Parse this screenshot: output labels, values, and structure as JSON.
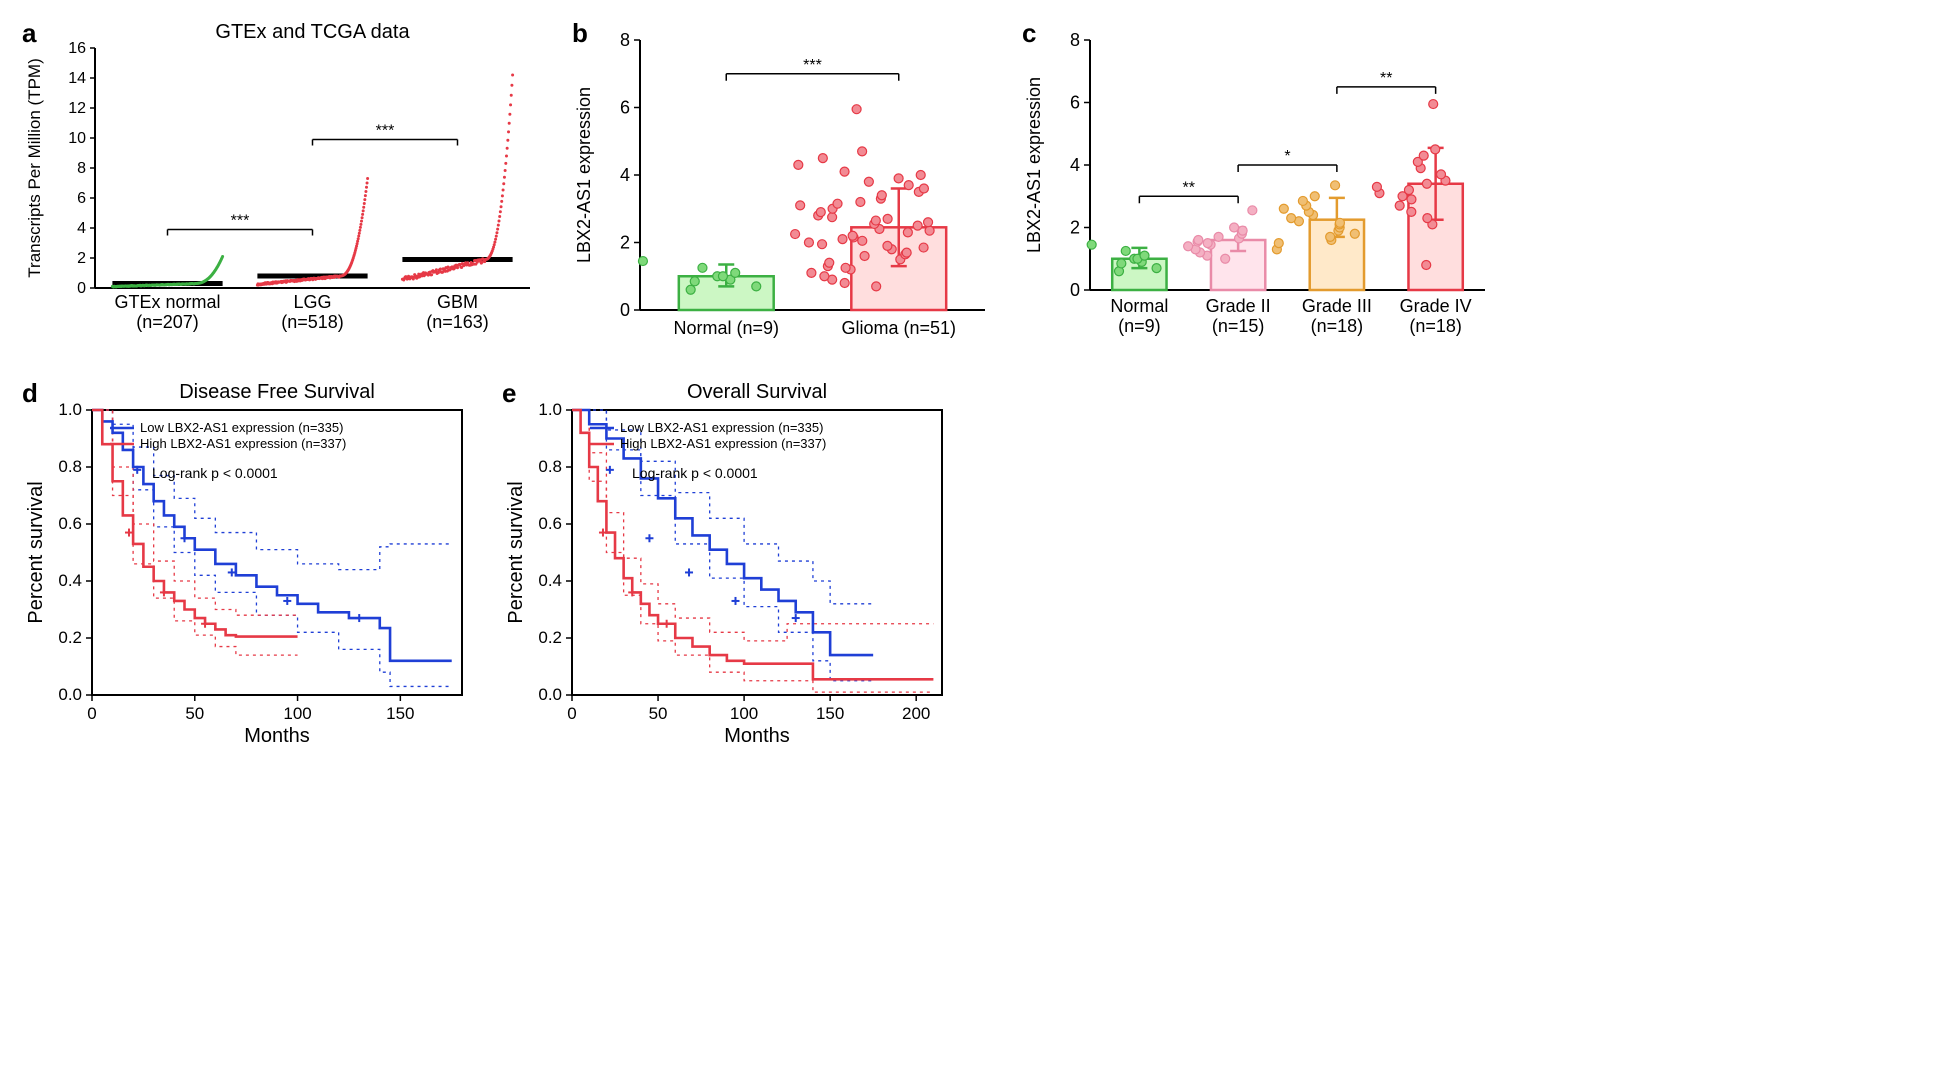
{
  "panelA": {
    "label": "a",
    "title": "GTEx and TCGA data",
    "ylabel": "Transcripts Per Million (TPM)",
    "ylim": [
      0,
      16
    ],
    "ytick_step": 2,
    "groups": [
      {
        "label_line1": "GTEx normal",
        "label_line2": "(n=207)",
        "n": 207,
        "median": 0.3,
        "color": "#3cb043",
        "max": 2.1
      },
      {
        "label_line1": "LGG",
        "label_line2": "(n=518)",
        "n": 518,
        "median": 0.8,
        "color": "#e63946",
        "max": 7.3
      },
      {
        "label_line1": "GBM",
        "label_line2": "(n=163)",
        "n": 163,
        "median": 1.9,
        "color": "#e63946",
        "max": 14.2
      }
    ],
    "sig_bars": [
      {
        "from": 0,
        "to": 1,
        "label": "***",
        "y": 3.9
      },
      {
        "from": 1,
        "to": 2,
        "label": "***",
        "y": 9.9
      }
    ],
    "label_fontsize": 18,
    "tick_fontsize": 16
  },
  "panelB": {
    "label": "b",
    "ylabel": "LBX2-AS1 expression",
    "ylim": [
      0,
      8
    ],
    "ytick_step": 2,
    "bars": [
      {
        "label": "Normal (n=9)",
        "mean": 1.0,
        "sd_up": 0.35,
        "sd_down": 0.3,
        "fill": "#ccf7c4",
        "stroke": "#3cb043",
        "dot_fill": "#7fd97a",
        "points": [
          0.6,
          0.7,
          0.85,
          0.9,
          1.0,
          1.0,
          1.1,
          1.25,
          1.45
        ]
      },
      {
        "label": "Glioma (n=51)",
        "mean": 2.45,
        "sd_up": 1.15,
        "sd_down": 1.15,
        "fill": "#ffdede",
        "stroke": "#e63946",
        "dot_fill": "#f28b94",
        "points": [
          0.7,
          0.8,
          0.9,
          1.0,
          1.1,
          1.2,
          1.25,
          1.3,
          1.4,
          1.5,
          1.6,
          1.65,
          1.7,
          1.8,
          1.85,
          1.9,
          1.95,
          2.0,
          2.05,
          2.1,
          2.15,
          2.2,
          2.25,
          2.3,
          2.35,
          2.4,
          2.5,
          2.55,
          2.6,
          2.65,
          2.7,
          2.75,
          2.8,
          2.9,
          3.0,
          3.1,
          3.15,
          3.2,
          3.3,
          3.4,
          3.5,
          3.6,
          3.7,
          3.8,
          3.9,
          4.0,
          4.1,
          4.3,
          4.5,
          4.7,
          5.95
        ]
      }
    ],
    "sig_label": "***",
    "sig_y": 7.0,
    "label_fontsize": 18
  },
  "panelC": {
    "label": "c",
    "ylabel": "LBX2-AS1 expression",
    "ylim": [
      0,
      8
    ],
    "ytick_step": 2,
    "bars": [
      {
        "label_line1": "Normal",
        "label_line2": "(n=9)",
        "mean": 1.0,
        "sd_up": 0.35,
        "sd_down": 0.3,
        "fill": "#ccf7c4",
        "stroke": "#3cb043",
        "dot_fill": "#7fd97a",
        "points": [
          0.6,
          0.7,
          0.85,
          0.9,
          1.0,
          1.0,
          1.1,
          1.25,
          1.45
        ]
      },
      {
        "label_line1": "Grade II",
        "label_line2": "(n=15)",
        "mean": 1.6,
        "sd_up": 0.4,
        "sd_down": 0.35,
        "fill": "#ffe4ec",
        "stroke": "#e98ba8",
        "dot_fill": "#f4b0c3",
        "points": [
          1.0,
          1.1,
          1.2,
          1.3,
          1.4,
          1.45,
          1.5,
          1.55,
          1.6,
          1.65,
          1.7,
          1.8,
          1.9,
          2.0,
          2.55
        ]
      },
      {
        "label_line1": "Grade III",
        "label_line2": "(n=18)",
        "mean": 2.25,
        "sd_up": 0.7,
        "sd_down": 0.55,
        "fill": "#ffe9c9",
        "stroke": "#e39b2e",
        "dot_fill": "#f0bf74",
        "points": [
          1.3,
          1.5,
          1.6,
          1.7,
          1.8,
          1.9,
          2.0,
          2.1,
          2.15,
          2.2,
          2.3,
          2.4,
          2.5,
          2.6,
          2.7,
          2.85,
          3.0,
          3.35
        ]
      },
      {
        "label_line1": "Grade IV",
        "label_line2": "(n=18)",
        "mean": 3.4,
        "sd_up": 1.15,
        "sd_down": 1.15,
        "fill": "#ffdede",
        "stroke": "#e63946",
        "dot_fill": "#f28b94",
        "points": [
          0.8,
          2.1,
          2.3,
          2.5,
          2.7,
          2.9,
          3.0,
          3.1,
          3.2,
          3.3,
          3.4,
          3.5,
          3.7,
          3.9,
          4.1,
          4.3,
          4.5,
          5.95
        ]
      }
    ],
    "sig_bars": [
      {
        "from": 0,
        "to": 1,
        "label": "**",
        "y": 3.0
      },
      {
        "from": 1,
        "to": 2,
        "label": "*",
        "y": 4.0
      },
      {
        "from": 2,
        "to": 3,
        "label": "**",
        "y": 6.5
      }
    ],
    "label_fontsize": 18
  },
  "panelD": {
    "label": "d",
    "title": "Disease Free Survival",
    "ylabel": "Percent survival",
    "xlabel": "Months",
    "ylim": [
      0,
      1.0
    ],
    "ytick_step": 0.2,
    "xlim": [
      0,
      180
    ],
    "xtick_step": 50,
    "logrank": "Log-rank p < 0.0001",
    "legend": [
      {
        "text": "Low LBX2-AS1 expression (n=335)",
        "color": "#1f3fd6"
      },
      {
        "text": "High LBX2-AS1 expression (n=337)",
        "color": "#e63946"
      }
    ],
    "curves": {
      "blue": [
        [
          0,
          1.0
        ],
        [
          5,
          0.96
        ],
        [
          10,
          0.92
        ],
        [
          15,
          0.86
        ],
        [
          20,
          0.8
        ],
        [
          25,
          0.74
        ],
        [
          30,
          0.68
        ],
        [
          35,
          0.63
        ],
        [
          40,
          0.59
        ],
        [
          45,
          0.55
        ],
        [
          50,
          0.51
        ],
        [
          60,
          0.46
        ],
        [
          70,
          0.42
        ],
        [
          80,
          0.38
        ],
        [
          90,
          0.35
        ],
        [
          100,
          0.32
        ],
        [
          110,
          0.29
        ],
        [
          125,
          0.27
        ],
        [
          140,
          0.235
        ],
        [
          145,
          0.12
        ],
        [
          175,
          0.12
        ]
      ],
      "blue_upper": [
        [
          0,
          1.0
        ],
        [
          10,
          0.95
        ],
        [
          20,
          0.87
        ],
        [
          30,
          0.77
        ],
        [
          40,
          0.69
        ],
        [
          50,
          0.62
        ],
        [
          60,
          0.57
        ],
        [
          80,
          0.51
        ],
        [
          100,
          0.46
        ],
        [
          120,
          0.44
        ],
        [
          140,
          0.52
        ],
        [
          145,
          0.53
        ],
        [
          175,
          0.53
        ]
      ],
      "blue_lower": [
        [
          0,
          1.0
        ],
        [
          10,
          0.88
        ],
        [
          20,
          0.72
        ],
        [
          30,
          0.59
        ],
        [
          40,
          0.5
        ],
        [
          50,
          0.42
        ],
        [
          60,
          0.36
        ],
        [
          80,
          0.28
        ],
        [
          100,
          0.22
        ],
        [
          120,
          0.16
        ],
        [
          140,
          0.08
        ],
        [
          145,
          0.03
        ],
        [
          175,
          0.03
        ]
      ],
      "red": [
        [
          0,
          1.0
        ],
        [
          5,
          0.88
        ],
        [
          10,
          0.75
        ],
        [
          15,
          0.63
        ],
        [
          20,
          0.53
        ],
        [
          25,
          0.45
        ],
        [
          30,
          0.4
        ],
        [
          35,
          0.36
        ],
        [
          40,
          0.33
        ],
        [
          45,
          0.3
        ],
        [
          50,
          0.27
        ],
        [
          55,
          0.25
        ],
        [
          60,
          0.23
        ],
        [
          65,
          0.21
        ],
        [
          70,
          0.205
        ],
        [
          100,
          0.205
        ]
      ],
      "red_upper": [
        [
          0,
          1.0
        ],
        [
          10,
          0.8
        ],
        [
          20,
          0.6
        ],
        [
          30,
          0.47
        ],
        [
          40,
          0.4
        ],
        [
          50,
          0.34
        ],
        [
          60,
          0.3
        ],
        [
          70,
          0.28
        ],
        [
          100,
          0.28
        ]
      ],
      "red_lower": [
        [
          0,
          1.0
        ],
        [
          10,
          0.7
        ],
        [
          20,
          0.46
        ],
        [
          30,
          0.34
        ],
        [
          40,
          0.26
        ],
        [
          50,
          0.21
        ],
        [
          60,
          0.17
        ],
        [
          70,
          0.14
        ],
        [
          100,
          0.14
        ]
      ]
    },
    "colors": {
      "blue": "#1f3fd6",
      "red": "#e63946"
    }
  },
  "panelE": {
    "label": "e",
    "title": "Overall Survival",
    "ylabel": "Percent survival",
    "xlabel": "Months",
    "ylim": [
      0,
      1.0
    ],
    "ytick_step": 0.2,
    "xlim": [
      0,
      215
    ],
    "xtick_step": 50,
    "logrank": "Log-rank p < 0.0001",
    "legend": [
      {
        "text": "Low LBX2-AS1 expression (n=335)",
        "color": "#1f3fd6"
      },
      {
        "text": "High LBX2-AS1 expression (n=337)",
        "color": "#e63946"
      }
    ],
    "curves": {
      "blue": [
        [
          0,
          1.0
        ],
        [
          10,
          0.95
        ],
        [
          20,
          0.9
        ],
        [
          30,
          0.83
        ],
        [
          40,
          0.76
        ],
        [
          50,
          0.69
        ],
        [
          60,
          0.62
        ],
        [
          70,
          0.56
        ],
        [
          80,
          0.51
        ],
        [
          90,
          0.46
        ],
        [
          100,
          0.41
        ],
        [
          110,
          0.37
        ],
        [
          120,
          0.33
        ],
        [
          130,
          0.29
        ],
        [
          140,
          0.22
        ],
        [
          150,
          0.14
        ],
        [
          160,
          0.14
        ],
        [
          175,
          0.14
        ]
      ],
      "blue_upper": [
        [
          0,
          1.0
        ],
        [
          20,
          0.93
        ],
        [
          40,
          0.82
        ],
        [
          60,
          0.71
        ],
        [
          80,
          0.62
        ],
        [
          100,
          0.53
        ],
        [
          120,
          0.47
        ],
        [
          140,
          0.4
        ],
        [
          150,
          0.32
        ],
        [
          175,
          0.32
        ]
      ],
      "blue_lower": [
        [
          0,
          1.0
        ],
        [
          20,
          0.86
        ],
        [
          40,
          0.7
        ],
        [
          60,
          0.53
        ],
        [
          80,
          0.41
        ],
        [
          100,
          0.31
        ],
        [
          120,
          0.22
        ],
        [
          140,
          0.12
        ],
        [
          150,
          0.05
        ],
        [
          175,
          0.05
        ]
      ],
      "red": [
        [
          0,
          1.0
        ],
        [
          5,
          0.92
        ],
        [
          10,
          0.8
        ],
        [
          15,
          0.68
        ],
        [
          20,
          0.57
        ],
        [
          25,
          0.48
        ],
        [
          30,
          0.41
        ],
        [
          35,
          0.36
        ],
        [
          40,
          0.32
        ],
        [
          45,
          0.28
        ],
        [
          50,
          0.25
        ],
        [
          60,
          0.2
        ],
        [
          70,
          0.17
        ],
        [
          80,
          0.14
        ],
        [
          90,
          0.12
        ],
        [
          100,
          0.11
        ],
        [
          125,
          0.11
        ],
        [
          140,
          0.055
        ],
        [
          210,
          0.055
        ]
      ],
      "red_upper": [
        [
          0,
          1.0
        ],
        [
          10,
          0.85
        ],
        [
          20,
          0.64
        ],
        [
          30,
          0.48
        ],
        [
          40,
          0.39
        ],
        [
          50,
          0.32
        ],
        [
          60,
          0.27
        ],
        [
          80,
          0.22
        ],
        [
          100,
          0.19
        ],
        [
          125,
          0.25
        ],
        [
          140,
          0.25
        ],
        [
          210,
          0.25
        ]
      ],
      "red_lower": [
        [
          0,
          1.0
        ],
        [
          10,
          0.75
        ],
        [
          20,
          0.5
        ],
        [
          30,
          0.35
        ],
        [
          40,
          0.25
        ],
        [
          50,
          0.19
        ],
        [
          60,
          0.14
        ],
        [
          80,
          0.08
        ],
        [
          100,
          0.05
        ],
        [
          140,
          0.01
        ],
        [
          210,
          0.01
        ]
      ]
    },
    "colors": {
      "blue": "#1f3fd6",
      "red": "#e63946"
    }
  }
}
